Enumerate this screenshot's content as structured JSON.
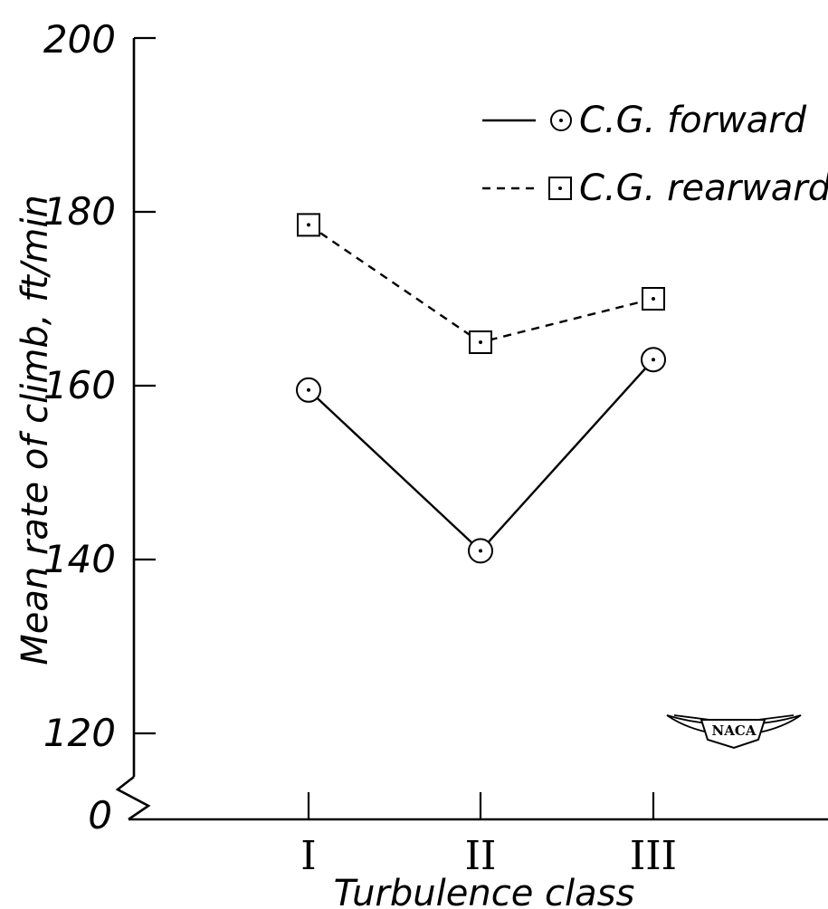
{
  "chart_data": {
    "type": "line",
    "xlabel": "Turbulence class",
    "ylabel": "Mean rate of climb, ft/min",
    "categories": [
      "I",
      "II",
      "III"
    ],
    "y_ticks": [
      "0",
      "120",
      "140",
      "160",
      "180",
      "200"
    ],
    "ylim": [
      120,
      200
    ],
    "axis_break": true,
    "grid": false,
    "legend_position": "top-right",
    "series": [
      {
        "name": "C.G. forward",
        "line_style": "solid",
        "marker": "dotted-circle",
        "values": [
          159.5,
          141,
          163
        ]
      },
      {
        "name": "C.G. rearward",
        "line_style": "dashed",
        "marker": "dotted-square",
        "values": [
          178.5,
          165,
          170
        ]
      }
    ],
    "logo": "NACA"
  }
}
